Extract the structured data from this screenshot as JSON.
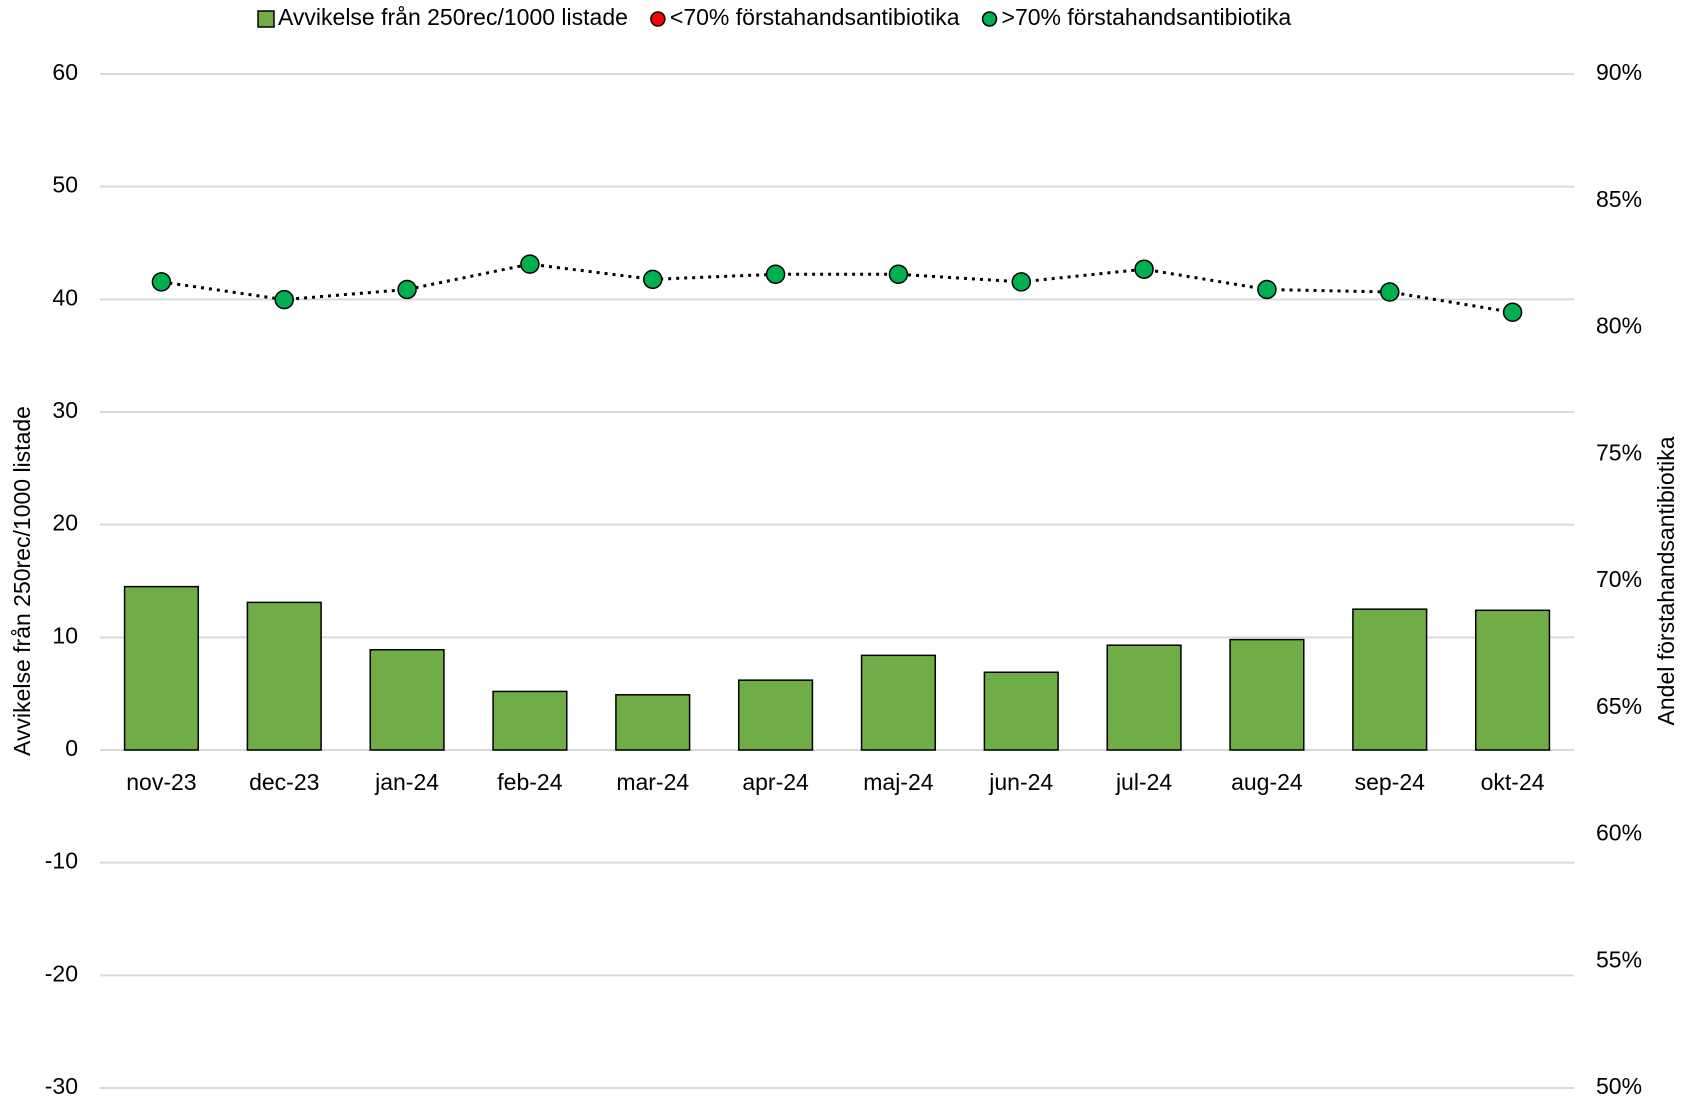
{
  "chart_data": {
    "type": "bar",
    "categories": [
      "nov-23",
      "dec-23",
      "jan-24",
      "feb-24",
      "mar-24",
      "apr-24",
      "maj-24",
      "jun-24",
      "jul-24",
      "aug-24",
      "sep-24",
      "okt-24"
    ],
    "series": [
      {
        "name": "Avvikelse från 250rec/1000 listade",
        "type": "bar",
        "color": "#70ad47",
        "values": [
          14.5,
          13.1,
          8.9,
          5.2,
          4.9,
          6.2,
          8.4,
          6.9,
          9.3,
          9.8,
          12.5,
          12.4
        ]
      },
      {
        "name": "<70% förstahandsantibiotika",
        "type": "scatter",
        "color": "#ff0000",
        "axis": "y2",
        "values": [
          null,
          null,
          null,
          null,
          null,
          null,
          null,
          null,
          null,
          null,
          null,
          null
        ]
      },
      {
        "name": ">70% förstahandsantibiotika",
        "type": "line",
        "color": "#00b050",
        "axis": "y2",
        "values": [
          81.8,
          81.1,
          81.5,
          82.5,
          81.9,
          82.1,
          82.1,
          81.8,
          82.3,
          81.5,
          81.4,
          80.6
        ]
      }
    ],
    "ylabel": "Avvikelse från 250rec/1000 listade",
    "y2label": "Andel förstahandsantibiotika",
    "ylim": [
      -30,
      60
    ],
    "yticks": [
      -30,
      -20,
      -10,
      0,
      10,
      20,
      30,
      40,
      50,
      60
    ],
    "y2lim": [
      50,
      90
    ],
    "y2ticks": [
      {
        "value": 50,
        "label": "50%"
      },
      {
        "value": 55,
        "label": "55%"
      },
      {
        "value": 60,
        "label": "60%"
      },
      {
        "value": 65,
        "label": "65%"
      },
      {
        "value": 70,
        "label": "70%"
      },
      {
        "value": 75,
        "label": "75%"
      },
      {
        "value": 80,
        "label": "80%"
      },
      {
        "value": 85,
        "label": "85%"
      },
      {
        "value": 90,
        "label": "90%"
      }
    ],
    "grid": true,
    "legend": "top"
  }
}
